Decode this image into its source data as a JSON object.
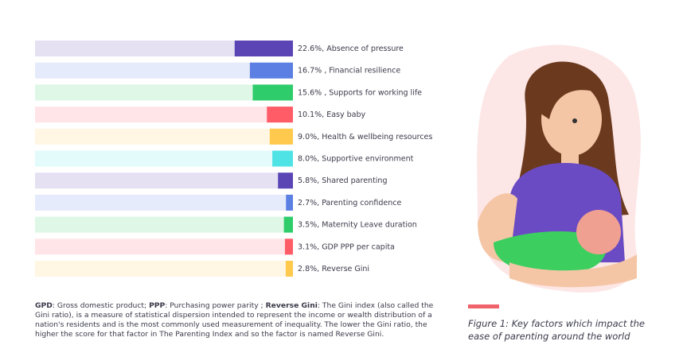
{
  "chart_data": {
    "type": "bar",
    "orientation": "horizontal",
    "categories": [
      "Absence of pressure",
      "Financial resilience",
      "Supports for working life",
      "Easy baby",
      "Health & wellbeing resources",
      "Supportive environment",
      "Shared parenting",
      "Parenting confidence",
      "Maternity Leave duration",
      "GDP PPP per capita",
      "Reverse Gini"
    ],
    "values": [
      22.6,
      16.7,
      15.6,
      10.1,
      9.0,
      8.0,
      5.8,
      2.7,
      3.5,
      3.1,
      2.8
    ],
    "value_labels": [
      "22.6%,",
      "16.7% ,",
      "15.6% ,",
      "10.1%,",
      "9.0%,",
      "8.0%,",
      "5.8%,",
      "2.7%,",
      "3.5%,",
      "3.1%,",
      "2.8%,"
    ],
    "colors": [
      "#5b45b5",
      "#5b7fe3",
      "#2ecc6a",
      "#ff5c68",
      "#ffc94d",
      "#4fe3e6",
      "#5b45b5",
      "#5b7fe3",
      "#2ecc6a",
      "#ff5c68",
      "#ffc94d"
    ],
    "xlim": [
      0,
      100
    ],
    "caption": "Figure 1: Key factors which impact the ease of parenting around the world",
    "footnote": [
      {
        "text": "GPD",
        "bold": true
      },
      {
        "text": ": Gross domestic product; "
      },
      {
        "text": "PPP",
        "bold": true
      },
      {
        "text": ": Purchasing power parity ; "
      },
      {
        "text": "Reverse Gini",
        "bold": true
      },
      {
        "text": ": The Gini index (also called the Gini ratio), is a measure of statistical dispersion intended to represent the income or wealth distribution of a nation's residents and is the most commonly used measurement of inequality. The lower the Gini ratio, the higher the score for that factor in The Parenting Index and so the factor is named Reverse Gini."
      }
    ]
  }
}
